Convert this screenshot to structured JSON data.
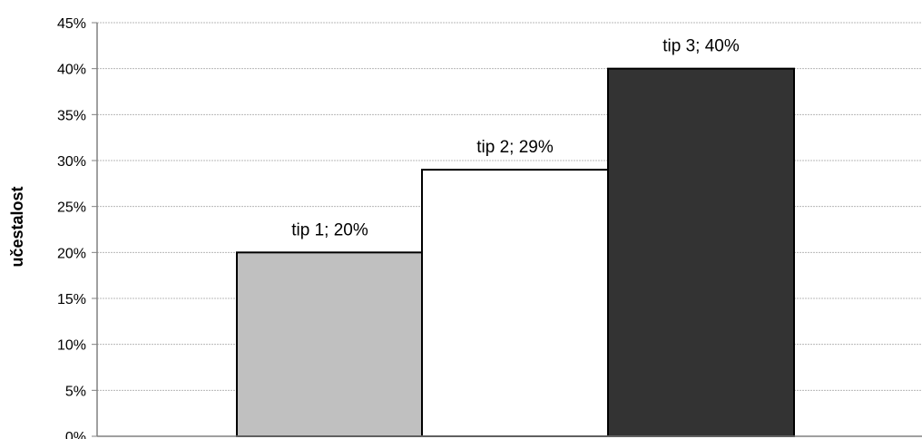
{
  "chart_data": {
    "type": "bar",
    "title": "",
    "xlabel": "",
    "ylabel": "učestalost",
    "ylim": [
      0,
      45
    ],
    "y_ticks": [
      "0%",
      "5%",
      "10%",
      "15%",
      "20%",
      "25%",
      "30%",
      "35%",
      "40%",
      "45%"
    ],
    "grid": true,
    "categories": [
      "tip 1",
      "tip 2",
      "tip 3"
    ],
    "values": [
      20,
      29,
      40
    ],
    "data_labels": [
      "tip 1; 20%",
      "tip 2; 29%",
      "tip 3; 40%"
    ],
    "colors": [
      "#c0c0c0",
      "#ffffff",
      "#333333"
    ]
  }
}
